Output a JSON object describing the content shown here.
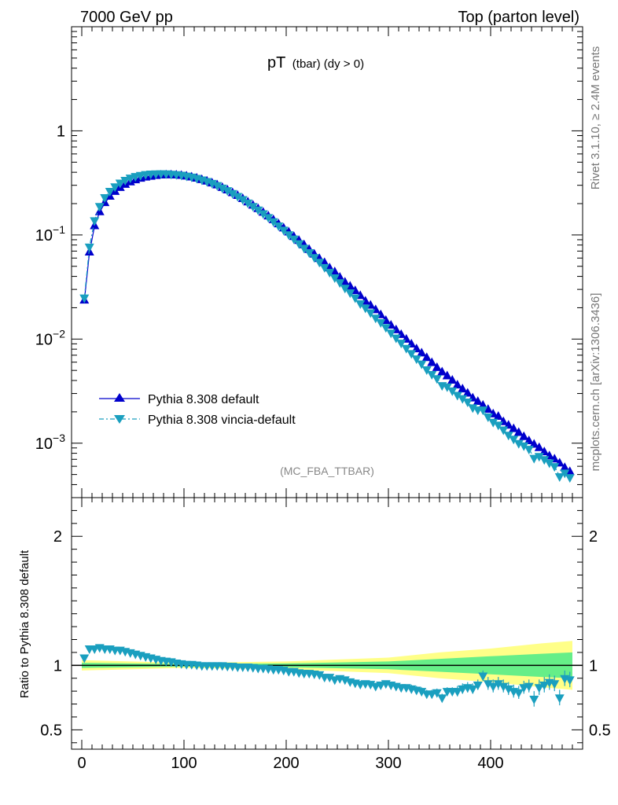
{
  "header": {
    "left": "7000 GeV pp",
    "right": "Top (parton level)"
  },
  "main_title": {
    "main": "pT",
    "sub": "(tbar) (dy > 0)"
  },
  "analysis_tag": "(MC_FBA_TTBAR)",
  "side_text": {
    "rivet": "Rivet 3.1.10, ≥ 2.4M events",
    "mcplots": "mcplots.cern.ch [arXiv:1306.3436]"
  },
  "ratio_ylabel": "Ratio to Pythia 8.308 default",
  "colors": {
    "default": "#0000cc",
    "vincia": "#1a9fbf",
    "band_inner": "#66ee88",
    "band_outer": "#ffff88",
    "axis": "#000000"
  },
  "chart_data": [
    {
      "type": "line",
      "title": "pT (tbar) (dy > 0)",
      "ylog": true,
      "xlim": [
        -10,
        490
      ],
      "ylim": [
        0.0003,
        10
      ],
      "xticks": [
        0,
        100,
        200,
        300,
        400
      ],
      "yticks": [
        {
          "v": 1,
          "mant": "1",
          "exp": ""
        },
        {
          "v": 0.1,
          "mant": "10",
          "exp": "−1"
        },
        {
          "v": 0.01,
          "mant": "10",
          "exp": "−2"
        },
        {
          "v": 0.001,
          "mant": "10",
          "exp": "−3"
        }
      ],
      "legend_position": "bottom-left",
      "x": [
        2.5,
        7.5,
        12.5,
        17.5,
        22.5,
        27.5,
        32.5,
        37.5,
        42.5,
        47.5,
        52.5,
        57.5,
        62.5,
        67.5,
        72.5,
        77.5,
        82.5,
        87.5,
        92.5,
        97.5,
        102.5,
        107.5,
        112.5,
        117.5,
        122.5,
        127.5,
        132.5,
        137.5,
        142.5,
        147.5,
        152.5,
        157.5,
        162.5,
        167.5,
        172.5,
        177.5,
        182.5,
        187.5,
        192.5,
        197.5,
        202.5,
        207.5,
        212.5,
        217.5,
        222.5,
        227.5,
        232.5,
        237.5,
        242.5,
        247.5,
        252.5,
        257.5,
        262.5,
        267.5,
        272.5,
        277.5,
        282.5,
        287.5,
        292.5,
        297.5,
        302.5,
        307.5,
        312.5,
        317.5,
        322.5,
        327.5,
        332.5,
        337.5,
        342.5,
        347.5,
        352.5,
        357.5,
        362.5,
        367.5,
        372.5,
        377.5,
        382.5,
        387.5,
        392.5,
        397.5,
        402.5,
        407.5,
        412.5,
        417.5,
        422.5,
        427.5,
        432.5,
        437.5,
        442.5,
        447.5,
        452.5,
        457.5,
        462.5,
        467.5,
        472.5,
        477.5
      ],
      "series": [
        {
          "name": "Pythia 8.308 default",
          "style": "solid-upward-triangle",
          "values": [
            0.0235,
            0.068,
            0.122,
            0.166,
            0.203,
            0.234,
            0.26,
            0.284,
            0.304,
            0.321,
            0.336,
            0.348,
            0.357,
            0.364,
            0.37,
            0.374,
            0.376,
            0.376,
            0.374,
            0.371,
            0.365,
            0.358,
            0.349,
            0.338,
            0.327,
            0.314,
            0.3,
            0.284,
            0.269,
            0.253,
            0.238,
            0.222,
            0.206,
            0.192,
            0.178,
            0.164,
            0.151,
            0.139,
            0.127,
            0.116,
            0.106,
            0.096,
            0.088,
            0.08,
            0.072,
            0.065,
            0.059,
            0.054,
            0.048,
            0.044,
            0.039,
            0.035,
            0.032,
            0.029,
            0.026,
            0.023,
            0.021,
            0.019,
            0.017,
            0.015,
            0.0135,
            0.0122,
            0.011,
            0.0099,
            0.0089,
            0.008,
            0.0073,
            0.0066,
            0.0059,
            0.0053,
            0.0048,
            0.0044,
            0.004,
            0.0036,
            0.0033,
            0.003,
            0.0027,
            0.0025,
            0.0023,
            0.0021,
            0.0019,
            0.0018,
            0.0016,
            0.00148,
            0.00137,
            0.00126,
            0.00115,
            0.00105,
            0.00097,
            0.0009,
            0.00082,
            0.00075,
            0.0007,
            0.00064,
            0.00058,
            0.00053
          ]
        },
        {
          "name": "Pythia 8.308 vincia-default",
          "style": "dashdot-downward-triangle",
          "values": [
            0.025,
            0.077,
            0.138,
            0.189,
            0.23,
            0.264,
            0.292,
            0.317,
            0.337,
            0.354,
            0.367,
            0.376,
            0.383,
            0.387,
            0.389,
            0.39,
            0.389,
            0.386,
            0.382,
            0.377,
            0.37,
            0.362,
            0.352,
            0.34,
            0.328,
            0.315,
            0.3,
            0.284,
            0.268,
            0.252,
            0.236,
            0.22,
            0.204,
            0.189,
            0.175,
            0.161,
            0.148,
            0.135,
            0.123,
            0.112,
            0.101,
            0.092,
            0.083,
            0.075,
            0.068,
            0.061,
            0.055,
            0.049,
            0.044,
            0.039,
            0.035,
            0.031,
            0.028,
            0.025,
            0.022,
            0.02,
            0.018,
            0.016,
            0.0145,
            0.013,
            0.0115,
            0.0103,
            0.0092,
            0.0082,
            0.0073,
            0.0065,
            0.0058,
            0.0051,
            0.0046,
            0.0042,
            0.0036,
            0.0035,
            0.0032,
            0.0029,
            0.0027,
            0.0025,
            0.0022,
            0.0021,
            0.0021,
            0.0018,
            0.0016,
            0.0015,
            0.00135,
            0.0012,
            0.0011,
            0.001,
            0.00095,
            0.00088,
            0.00072,
            0.00075,
            0.0007,
            0.00065,
            0.0006,
            0.00048,
            0.00052,
            0.00047
          ]
        }
      ]
    },
    {
      "type": "line",
      "ylabel": "Ratio to Pythia 8.308 default",
      "xlim": [
        -10,
        490
      ],
      "ylim": [
        0.35,
        2.3
      ],
      "xticks": [
        0,
        100,
        200,
        300,
        400
      ],
      "yticks": [
        0.5,
        1,
        2
      ],
      "reference_line": 1,
      "band": {
        "x": [
          0,
          100,
          200,
          300,
          350,
          400,
          450,
          480
        ],
        "inner": [
          0.02,
          0.01,
          0.015,
          0.03,
          0.05,
          0.07,
          0.09,
          0.1
        ],
        "outer": [
          0.04,
          0.02,
          0.03,
          0.06,
          0.1,
          0.13,
          0.17,
          0.19
        ]
      },
      "series": [
        {
          "name": "Pythia 8.308 vincia-default",
          "values": [
            1.06,
            1.13,
            1.13,
            1.14,
            1.13,
            1.13,
            1.12,
            1.12,
            1.11,
            1.1,
            1.09,
            1.08,
            1.07,
            1.06,
            1.05,
            1.04,
            1.035,
            1.03,
            1.02,
            1.015,
            1.01,
            1.01,
            1.005,
            1.0,
            1.0,
            1.0,
            1.0,
            1.0,
            0.995,
            0.995,
            0.99,
            0.99,
            0.99,
            0.985,
            0.98,
            0.98,
            0.975,
            0.97,
            0.97,
            0.965,
            0.955,
            0.955,
            0.945,
            0.94,
            0.94,
            0.935,
            0.93,
            0.91,
            0.91,
            0.89,
            0.9,
            0.89,
            0.875,
            0.865,
            0.855,
            0.86,
            0.855,
            0.84,
            0.85,
            0.86,
            0.85,
            0.84,
            0.83,
            0.83,
            0.82,
            0.81,
            0.8,
            0.78,
            0.78,
            0.79,
            0.75,
            0.8,
            0.8,
            0.8,
            0.82,
            0.83,
            0.82,
            0.85,
            0.92,
            0.86,
            0.84,
            0.86,
            0.84,
            0.82,
            0.8,
            0.79,
            0.83,
            0.84,
            0.74,
            0.83,
            0.85,
            0.87,
            0.86,
            0.75,
            0.9,
            0.89
          ],
          "errors": [
            0.02,
            0.02,
            0.02,
            0.02,
            0.02,
            0.02,
            0.02,
            0.02,
            0.02,
            0.02,
            0.02,
            0.02,
            0.02,
            0.02,
            0.02,
            0.02,
            0.02,
            0.02,
            0.02,
            0.02,
            0.02,
            0.02,
            0.02,
            0.02,
            0.02,
            0.02,
            0.02,
            0.02,
            0.02,
            0.02,
            0.02,
            0.02,
            0.02,
            0.02,
            0.02,
            0.02,
            0.02,
            0.02,
            0.02,
            0.02,
            0.02,
            0.02,
            0.02,
            0.02,
            0.02,
            0.02,
            0.02,
            0.02,
            0.02,
            0.02,
            0.02,
            0.02,
            0.02,
            0.02,
            0.02,
            0.02,
            0.02,
            0.02,
            0.02,
            0.02,
            0.02,
            0.02,
            0.02,
            0.02,
            0.03,
            0.03,
            0.03,
            0.03,
            0.03,
            0.03,
            0.03,
            0.03,
            0.03,
            0.04,
            0.04,
            0.04,
            0.04,
            0.04,
            0.04,
            0.05,
            0.05,
            0.05,
            0.05,
            0.05,
            0.05,
            0.05,
            0.05,
            0.05,
            0.06,
            0.06,
            0.06,
            0.06,
            0.06,
            0.06,
            0.06,
            0.06
          ]
        }
      ]
    }
  ]
}
